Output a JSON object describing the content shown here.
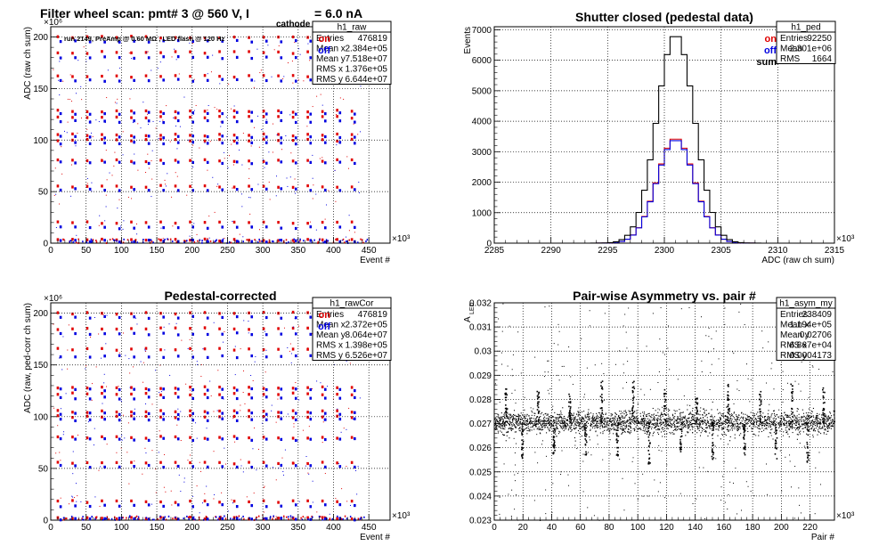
{
  "chart_data": [
    {
      "id": "p1",
      "type": "scatter",
      "title_parts": {
        "main": "Filter wheel scan: pmt#   3 @   560 V, I",
        "sub": "cathode",
        "end": "= 6.0 nA"
      },
      "note": "run 2149, PreAmp @ 0.60 MΩ , LED flash @  120 Hz",
      "xlabel": "Event #",
      "ylabel": "ADC (raw ch sum)",
      "x_exponent": "×10³",
      "y_exponent": "×10⁶",
      "xlim": [
        0,
        480
      ],
      "ylim": [
        0,
        210
      ],
      "x_ticks": [
        "0",
        "50",
        "100",
        "150",
        "200",
        "250",
        "300",
        "350",
        "400",
        "450"
      ],
      "y_ticks": [
        "0",
        "50",
        "100",
        "150",
        "200"
      ],
      "legend": [
        {
          "label": "on",
          "color": "#e00000"
        },
        {
          "label": "off",
          "color": "#0000e0"
        }
      ],
      "stats": {
        "name": "h1_raw",
        "rows": [
          [
            "Entries",
            "476819"
          ],
          [
            "Mean x",
            "2.384e+05"
          ],
          [
            "Mean y",
            "7.518e+07"
          ],
          [
            "RMS x",
            "1.376e+05"
          ],
          [
            "RMS y",
            "6.644e+07"
          ]
        ]
      },
      "series": [
        {
          "name": "on",
          "color": "#e00000",
          "levels": [
            200,
            185,
            162,
            128,
            122,
            105,
            100,
            80,
            55,
            20,
            3
          ],
          "level_count": 11
        },
        {
          "name": "off",
          "color": "#0000e0",
          "levels": [
            196,
            180,
            158,
            126,
            118,
            103,
            97,
            78,
            52,
            15,
            2
          ],
          "level_count": 11
        }
      ]
    },
    {
      "id": "p2",
      "type": "histogram",
      "title": "Shutter closed (pedestal data)",
      "xlabel": "ADC (raw ch sum)",
      "ylabel": "Events",
      "x_exponent": "×10³",
      "xlim": [
        2285,
        2315
      ],
      "ylim": [
        0,
        7100
      ],
      "x_ticks": [
        "2285",
        "2290",
        "2295",
        "2300",
        "2305",
        "2310",
        "2315"
      ],
      "y_ticks": [
        "0",
        "1000",
        "2000",
        "3000",
        "4000",
        "5000",
        "6000",
        "7000"
      ],
      "legend": [
        {
          "label": "on",
          "color": "#e00000"
        },
        {
          "label": "off",
          "color": "#0000e0"
        },
        {
          "label": "sum",
          "color": "#000000"
        }
      ],
      "stats": {
        "name": "h1_ped",
        "rows": [
          [
            "Entries",
            "92250"
          ],
          [
            "Mean",
            "2.301e+06"
          ],
          [
            "RMS",
            "1664"
          ]
        ]
      },
      "series": [
        {
          "name": "on",
          "color": "#e00000",
          "mean": 2301,
          "rms": 1.66,
          "peak": 3450
        },
        {
          "name": "off",
          "color": "#0000e0",
          "mean": 2301,
          "rms": 1.66,
          "peak": 3400
        },
        {
          "name": "sum",
          "color": "#000000",
          "mean": 2301,
          "rms": 1.66,
          "peak": 6850
        }
      ]
    },
    {
      "id": "p3",
      "type": "scatter",
      "title": "Pedestal-corrected",
      "xlabel": "Event #",
      "ylabel": "ADC (raw, ped-corr ch sum)",
      "x_exponent": "×10³",
      "y_exponent": "×10⁶",
      "xlim": [
        0,
        480
      ],
      "ylim": [
        0,
        210
      ],
      "x_ticks": [
        "0",
        "50",
        "100",
        "150",
        "200",
        "250",
        "300",
        "350",
        "400",
        "450"
      ],
      "y_ticks": [
        "0",
        "50",
        "100",
        "150",
        "200"
      ],
      "legend": [
        {
          "label": "on",
          "color": "#e00000"
        },
        {
          "label": "off",
          "color": "#0000e0"
        }
      ],
      "stats": {
        "name": "h1_rawCor",
        "rows": [
          [
            "Entries",
            "476819"
          ],
          [
            "Mean x",
            "2.372e+05"
          ],
          [
            "Mean y",
            "8.064e+07"
          ],
          [
            "RMS x",
            "1.398e+05"
          ],
          [
            "RMS y",
            "6.526e+07"
          ]
        ]
      },
      "series": [
        {
          "name": "on",
          "color": "#e00000",
          "levels": [
            200,
            185,
            165,
            128,
            122,
            105,
            100,
            80,
            55,
            18,
            2
          ],
          "level_count": 11
        },
        {
          "name": "off",
          "color": "#0000e0",
          "levels": [
            196,
            180,
            158,
            126,
            118,
            103,
            97,
            78,
            52,
            14,
            1
          ],
          "level_count": 11
        }
      ]
    },
    {
      "id": "p4",
      "type": "scatter",
      "title": "Pair-wise Asymmetry vs. pair #",
      "xlabel": "Pair #",
      "ylabel": "A",
      "ylabel_sub": "LED",
      "x_exponent": "×10³",
      "xlim": [
        0,
        237
      ],
      "ylim": [
        0.023,
        0.032
      ],
      "x_ticks": [
        "0",
        "20",
        "40",
        "60",
        "80",
        "100",
        "120",
        "140",
        "160",
        "180",
        "200",
        "220"
      ],
      "y_ticks": [
        "0.023",
        "0.024",
        "0.025",
        "0.026",
        "0.027",
        "0.028",
        "0.029",
        "0.03",
        "0.031",
        "0.032"
      ],
      "stats": {
        "name": "h1_asym_my",
        "rows": [
          [
            "Entries",
            "238409"
          ],
          [
            "Mean x",
            "1.194e+05"
          ],
          [
            "Mean y",
            "0.02706"
          ],
          [
            "RMS x",
            "6.867e+04"
          ],
          [
            "RMS y",
            "0.0004173"
          ]
        ]
      },
      "series": [
        {
          "name": "asymmetry",
          "color": "#000000",
          "band_center": 0.02706,
          "band_halfwidth": 0.0003
        }
      ]
    }
  ]
}
